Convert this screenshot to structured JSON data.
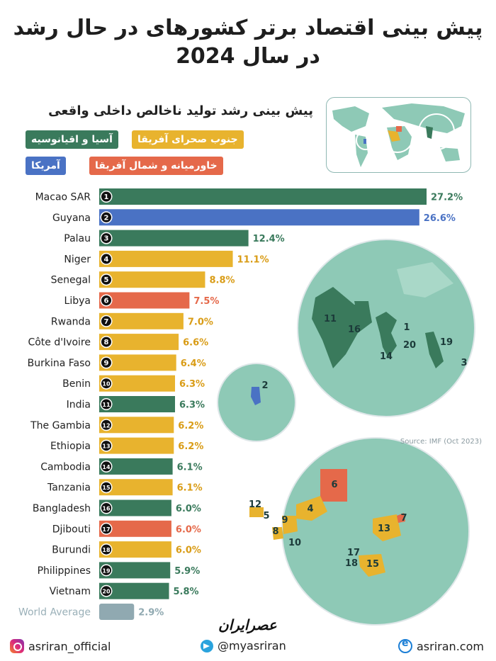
{
  "header": {
    "title_line1": "پیش بینی اقتصاد برتر کشورهای در حال رشد",
    "title_line2": "در سال 2024",
    "subtitle": "پیش بینی رشد تولید ناخالص داخلی واقعی"
  },
  "legend": {
    "asia": "آسیا و اقیانوسیه",
    "africa": "جنوب صحرای آفریقا",
    "americas": "آمریکا",
    "mena": "خاورمیانه و شمال آفریقا"
  },
  "colors": {
    "asia": "#3a7a5c",
    "africa": "#e8b32e",
    "americas": "#4a72c4",
    "mena": "#e5694a",
    "world": "#90a9b1",
    "map_land": "#8ec9b6",
    "map_water": "#ffffff"
  },
  "source": "Source: IMF (Oct 2023)",
  "brand": "عصرایران",
  "footer": {
    "instagram": "asriran_official",
    "telegram": "@myasriran",
    "website": "asriran.com"
  },
  "chart_data": {
    "type": "bar",
    "orientation": "horizontal",
    "unit": "%",
    "categories": [
      "Macao SAR",
      "Guyana",
      "Palau",
      "Niger",
      "Senegal",
      "Libya",
      "Rwanda",
      "Côte d'Ivoire",
      "Burkina Faso",
      "Benin",
      "India",
      "The Gambia",
      "Ethiopia",
      "Cambodia",
      "Tanzania",
      "Bangladesh",
      "Djibouti",
      "Burundi",
      "Philippines",
      "Vietnam",
      "World Average"
    ],
    "ranks": [
      "1",
      "2",
      "3",
      "4",
      "5",
      "6",
      "7",
      "8",
      "9",
      "10",
      "11",
      "12",
      "13",
      "14",
      "15",
      "16",
      "17",
      "18",
      "19",
      "20",
      ""
    ],
    "values": [
      27.2,
      26.6,
      12.4,
      11.1,
      8.8,
      7.5,
      7.0,
      6.6,
      6.4,
      6.3,
      6.3,
      6.2,
      6.2,
      6.1,
      6.1,
      6.0,
      6.0,
      6.0,
      5.9,
      5.8,
      2.9
    ],
    "labels": [
      "27.2%",
      "26.6%",
      "12.4%",
      "11.1%",
      "8.8%",
      "7.5%",
      "7.0%",
      "6.6%",
      "6.4%",
      "6.3%",
      "6.3%",
      "6.2%",
      "6.2%",
      "6.1%",
      "6.1%",
      "6.0%",
      "6.0%",
      "6.0%",
      "5.9%",
      "5.8%",
      "2.9%"
    ],
    "regions": [
      "asia",
      "americas",
      "asia",
      "africa",
      "africa",
      "mena",
      "africa",
      "africa",
      "africa",
      "africa",
      "asia",
      "africa",
      "africa",
      "asia",
      "africa",
      "asia",
      "mena",
      "africa",
      "asia",
      "asia",
      "world"
    ],
    "map_markers_asia": [
      "11",
      "16",
      "1",
      "20",
      "14",
      "19",
      "3"
    ],
    "map_markers_americas": [
      "2"
    ],
    "map_markers_africa": [
      "6",
      "12",
      "5",
      "4",
      "9",
      "8",
      "10",
      "17",
      "13",
      "7",
      "18",
      "15"
    ]
  }
}
